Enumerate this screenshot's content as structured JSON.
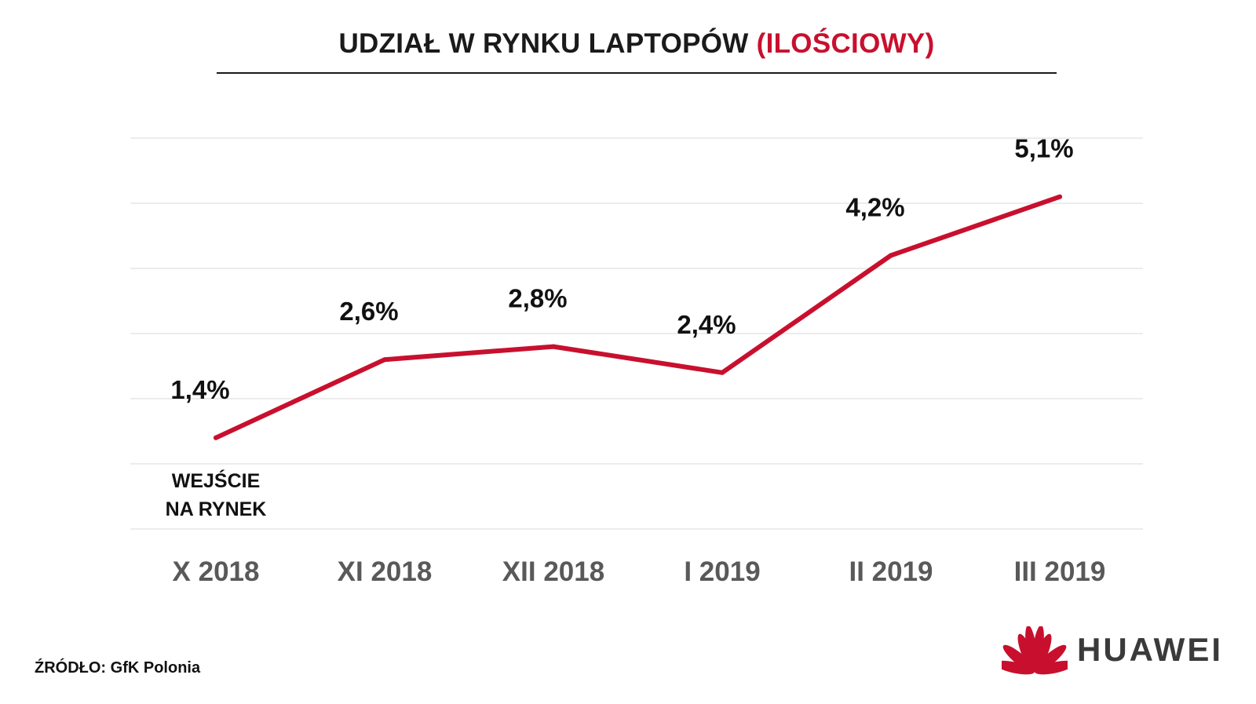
{
  "title": {
    "main": "UDZIAŁ W RYNKU LAPTOPÓW",
    "accent": "(ILOŚCIOWY)"
  },
  "source": "ŹRÓDŁO: GfK Polonia",
  "logo": {
    "text": "HUAWEI",
    "color": "#c8102e"
  },
  "colors": {
    "line": "#c8102e",
    "grid": "#e6e6e6",
    "axis_label": "#595959"
  },
  "chart_data": {
    "type": "line",
    "categories": [
      "X 2018",
      "XI 2018",
      "XII 2018",
      "I 2019",
      "II 2019",
      "III 2019"
    ],
    "series": [
      {
        "values": [
          1.4,
          2.6,
          2.8,
          2.4,
          4.2,
          5.1
        ]
      }
    ],
    "data_labels": [
      "1,4%",
      "2,6%",
      "2,8%",
      "2,4%",
      "4,2%",
      "5,1%"
    ],
    "annotations": [
      {
        "category": "X 2018",
        "lines": [
          "WEJŚCIE",
          "NA RYNEK"
        ]
      }
    ],
    "ylim": [
      0,
      6
    ],
    "y_unit": "%",
    "grid": true,
    "legend": "none",
    "xlabel": "",
    "ylabel": ""
  }
}
